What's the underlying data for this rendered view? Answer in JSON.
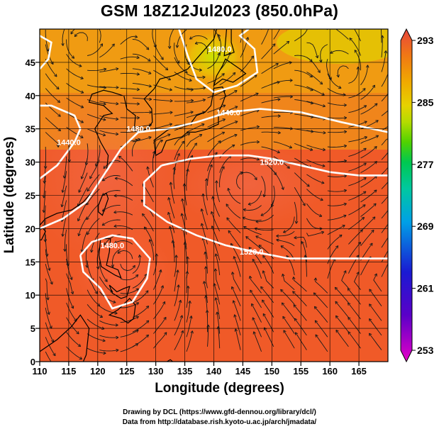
{
  "title": "GSM 18Z12Jul2023 (850.0hPa)",
  "x_axis": {
    "label": "Longitude (degrees)",
    "min": 110,
    "max": 170,
    "ticks": [
      "110",
      "115",
      "120",
      "125",
      "130",
      "135",
      "140",
      "145",
      "150",
      "155",
      "160",
      "165"
    ]
  },
  "y_axis": {
    "label": "Latitude  (degrees)",
    "min": 0,
    "max": 50,
    "ticks": [
      "0",
      "5",
      "10",
      "15",
      "20",
      "25",
      "30",
      "35",
      "40",
      "45"
    ]
  },
  "colorbar": {
    "min": 253,
    "max": 293,
    "ticks": [
      "253",
      "261",
      "269",
      "277",
      "285",
      "293"
    ],
    "colors": [
      "#e600c8",
      "#7a00c8",
      "#1a1ad2",
      "#1e5ae6",
      "#0096e6",
      "#00c8c8",
      "#00c864",
      "#28c800",
      "#96dc00",
      "#dcdc00",
      "#f0b400",
      "#f08200",
      "#f05a1e",
      "#e63c3c"
    ]
  },
  "contours": [
    {
      "label": "1440.0",
      "lon": 115.0,
      "lat": 33.0
    },
    {
      "label": "1480.0",
      "lon": 127.0,
      "lat": 35.0
    },
    {
      "label": "1440.0",
      "lon": 142.5,
      "lat": 37.5
    },
    {
      "label": "1480.0",
      "lon": 141.0,
      "lat": 47.0
    },
    {
      "label": "1520.0",
      "lon": 150.0,
      "lat": 30.0
    },
    {
      "label": "1480.0",
      "lon": 122.5,
      "lat": 17.5
    },
    {
      "label": "1520.0",
      "lon": 146.5,
      "lat": 16.5
    }
  ],
  "credits": {
    "line1": "Drawing by DCL (https://www.gfd-dennou.org/library/dcl/)",
    "line2": "Data from http://database.rish.kyoto-u.ac.jp/arch/jmadata/"
  }
}
